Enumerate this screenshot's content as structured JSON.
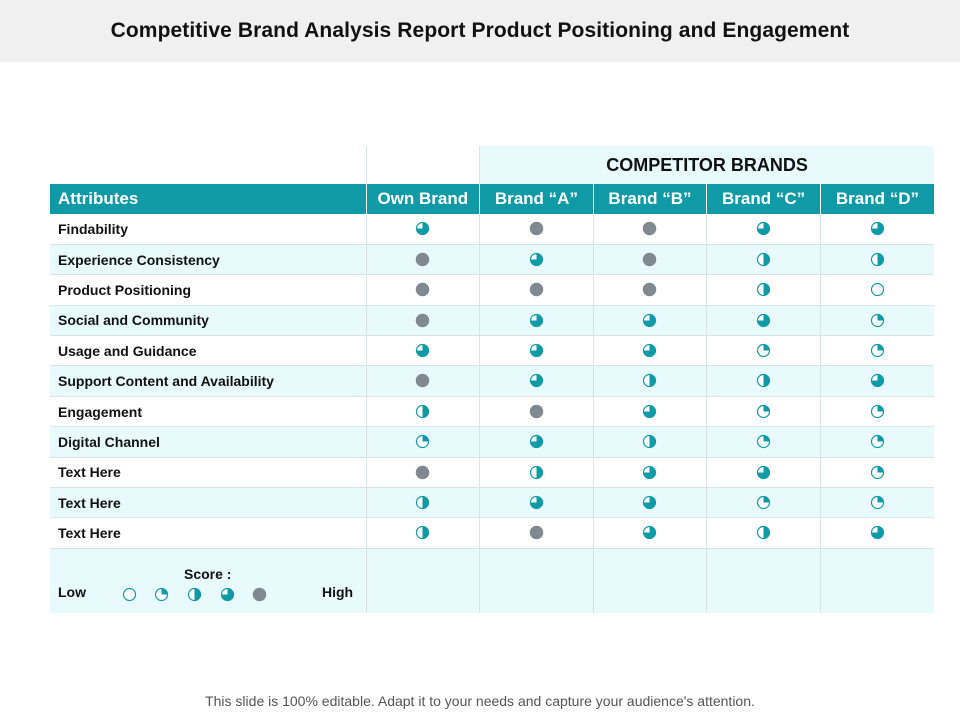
{
  "title": "Competitive Brand Analysis Report Product Positioning and Engagement",
  "competitor_header": "COMPETITOR BRANDS",
  "columns": {
    "attributes": "Attributes",
    "own_brand": "Own Brand",
    "brand_a": "Brand “A”",
    "brand_b": "Brand “B”",
    "brand_c": "Brand “C”",
    "brand_d": "Brand “D”"
  },
  "rows": [
    {
      "label": "Findability",
      "scores": [
        3,
        4,
        4,
        3,
        3
      ]
    },
    {
      "label": "Experience Consistency",
      "scores": [
        4,
        3,
        4,
        2,
        2
      ]
    },
    {
      "label": "Product Positioning",
      "scores": [
        4,
        4,
        4,
        2,
        0
      ]
    },
    {
      "label": "Social and Community",
      "scores": [
        4,
        3,
        3,
        3,
        1
      ]
    },
    {
      "label": "Usage and Guidance",
      "scores": [
        3,
        3,
        3,
        1,
        1
      ]
    },
    {
      "label": "Support Content and Availability",
      "scores": [
        4,
        3,
        2,
        2,
        3
      ]
    },
    {
      "label": "Engagement",
      "scores": [
        2,
        4,
        3,
        1,
        1
      ]
    },
    {
      "label": "Digital Channel",
      "scores": [
        1,
        3,
        2,
        1,
        1
      ]
    },
    {
      "label": "Text Here",
      "scores": [
        4,
        2,
        3,
        3,
        1
      ]
    },
    {
      "label": "Text Here",
      "scores": [
        2,
        3,
        3,
        1,
        1
      ]
    },
    {
      "label": "Text Here",
      "scores": [
        2,
        4,
        3,
        2,
        3
      ]
    }
  ],
  "legend": {
    "score_label": "Score :",
    "low_label": "Low",
    "high_label": "High",
    "levels": [
      0,
      1,
      2,
      3,
      4
    ]
  },
  "footer": "This slide is 100% editable. Adapt it to your needs and capture your audience's attention.",
  "colors": {
    "teal": "#0f9aa6",
    "gray": "#808890",
    "light_row": "#e8fafc"
  }
}
